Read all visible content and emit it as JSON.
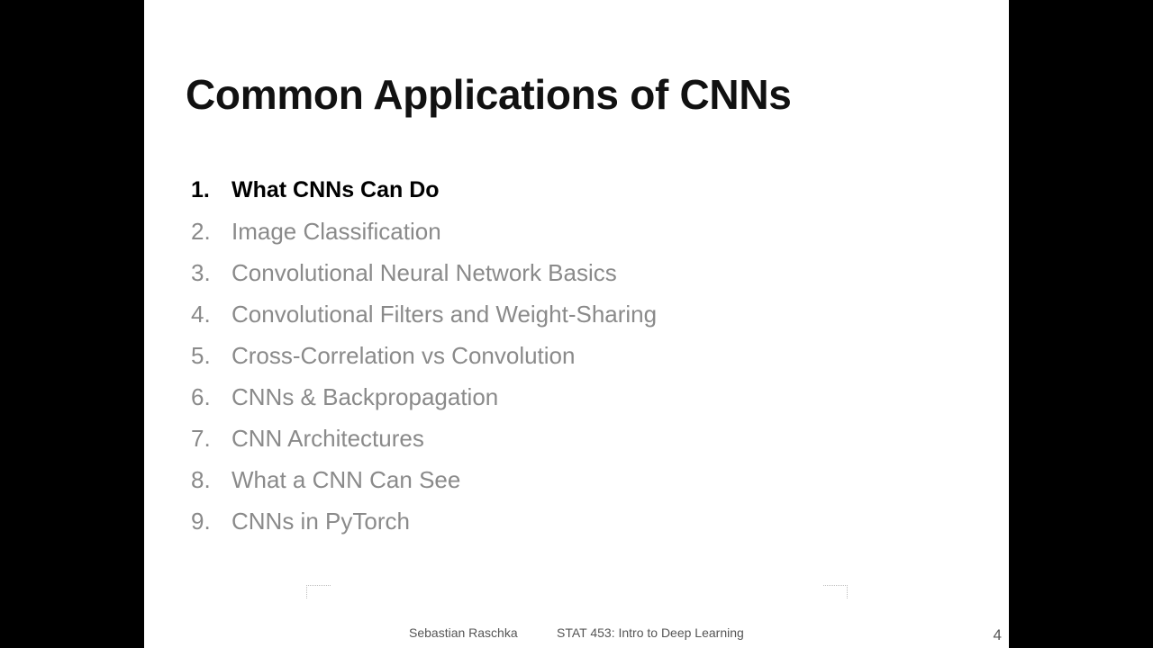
{
  "slide": {
    "title": "Common Applications of CNNs",
    "agenda": [
      {
        "number": "1.",
        "label": "What CNNs Can Do",
        "active": true
      },
      {
        "number": "2.",
        "label": "Image Classification",
        "active": false
      },
      {
        "number": "3.",
        "label": "Convolutional Neural Network Basics",
        "active": false
      },
      {
        "number": "4.",
        "label": "Convolutional Filters and Weight-Sharing",
        "active": false
      },
      {
        "number": "5.",
        "label": "Cross-Correlation vs Convolution",
        "active": false
      },
      {
        "number": "6.",
        "label": "CNNs & Backpropagation",
        "active": false
      },
      {
        "number": "7.",
        "label": "CNN Architectures",
        "active": false
      },
      {
        "number": "8.",
        "label": "What a CNN Can See",
        "active": false
      },
      {
        "number": "9.",
        "label": "CNNs in PyTorch",
        "active": false
      }
    ],
    "footer": {
      "author": "Sebastian Raschka",
      "course": "STAT 453: Intro to Deep Learning",
      "page_number": "4"
    }
  },
  "colors": {
    "active_text": "#000000",
    "inactive_text": "#8a8a8a",
    "footer_text": "#555555",
    "background": "#ffffff",
    "letterbox": "#000000"
  }
}
